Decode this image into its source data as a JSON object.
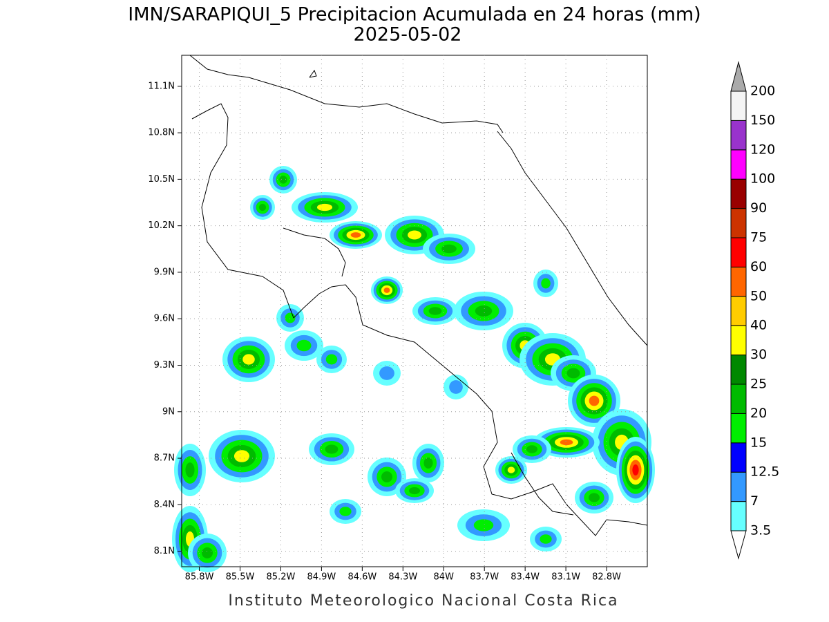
{
  "title": "IMN/SARAPIQUI_5 Precipitacion Acumulada en 24 horas (mm)",
  "subtitle": "2025-05-02",
  "footer": "Instituto Meteorologico Nacional Costa Rica",
  "map": {
    "xlim": [
      -85.93,
      -82.5
    ],
    "ylim": [
      8.0,
      11.3
    ],
    "xticks": [
      {
        "value": -85.8,
        "label": "85.8W"
      },
      {
        "value": -85.5,
        "label": "85.5W"
      },
      {
        "value": -85.2,
        "label": "85.2W"
      },
      {
        "value": -84.9,
        "label": "84.9W"
      },
      {
        "value": -84.6,
        "label": "84.6W"
      },
      {
        "value": -84.3,
        "label": "84.3W"
      },
      {
        "value": -84.0,
        "label": "84W"
      },
      {
        "value": -83.7,
        "label": "83.7W"
      },
      {
        "value": -83.4,
        "label": "83.4W"
      },
      {
        "value": -83.1,
        "label": "83.1W"
      },
      {
        "value": -82.8,
        "label": "82.8W"
      }
    ],
    "yticks": [
      {
        "value": 8.1,
        "label": "8.1N"
      },
      {
        "value": 8.4,
        "label": "8.4N"
      },
      {
        "value": 8.7,
        "label": "8.7N"
      },
      {
        "value": 9.0,
        "label": "9N"
      },
      {
        "value": 9.3,
        "label": "9.3N"
      },
      {
        "value": 9.6,
        "label": "9.6N"
      },
      {
        "value": 9.9,
        "label": "9.9N"
      },
      {
        "value": 10.2,
        "label": "10.2N"
      },
      {
        "value": 10.5,
        "label": "10.5N"
      },
      {
        "value": 10.8,
        "label": "10.8N"
      },
      {
        "value": 11.1,
        "label": "11.1N"
      }
    ]
  },
  "colorbar": {
    "levels": [
      3.5,
      7,
      12.5,
      15,
      20,
      25,
      30,
      40,
      50,
      60,
      75,
      90,
      100,
      120,
      150,
      200
    ],
    "colors": [
      "#ffffff",
      "#66ffff",
      "#3399ff",
      "#0000ff",
      "#00ee00",
      "#00bb00",
      "#008800",
      "#ffff00",
      "#ffcc00",
      "#ff6600",
      "#ff0000",
      "#cc3300",
      "#990000",
      "#ff00ff",
      "#9933cc",
      "#f4f4f4",
      "#aaaaaa"
    ]
  }
}
